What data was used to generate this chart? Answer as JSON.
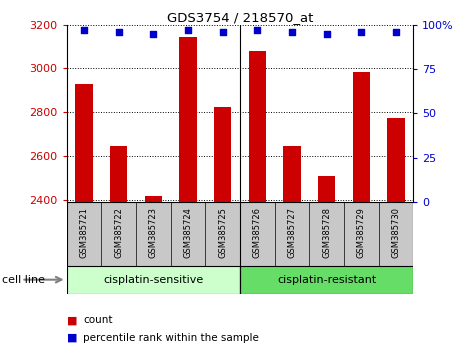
{
  "title": "GDS3754 / 218570_at",
  "samples": [
    "GSM385721",
    "GSM385722",
    "GSM385723",
    "GSM385724",
    "GSM385725",
    "GSM385726",
    "GSM385727",
    "GSM385728",
    "GSM385729",
    "GSM385730"
  ],
  "counts": [
    2930,
    2645,
    2415,
    3145,
    2825,
    3080,
    2645,
    2510,
    2985,
    2775
  ],
  "percentile_ranks": [
    97,
    96,
    95,
    97,
    96,
    97,
    96,
    95,
    96,
    96
  ],
  "ylim_left": [
    2390,
    3200
  ],
  "ylim_right": [
    0,
    100
  ],
  "yticks_left": [
    2400,
    2600,
    2800,
    3000,
    3200
  ],
  "yticks_right": [
    0,
    25,
    50,
    75,
    100
  ],
  "bar_color": "#cc0000",
  "dot_color": "#0000cc",
  "grid_color": "#000000",
  "sensitive_label": "cisplatin-sensitive",
  "resistant_label": "cisplatin-resistant",
  "cell_line_label": "cell line",
  "legend_count": "count",
  "legend_pct": "percentile rank within the sample",
  "background_xaxis": "#c8c8c8",
  "sensitive_bg": "#ccffcc",
  "resistant_bg": "#66dd66",
  "bar_width": 0.5,
  "n_sensitive": 5,
  "n_resistant": 5
}
